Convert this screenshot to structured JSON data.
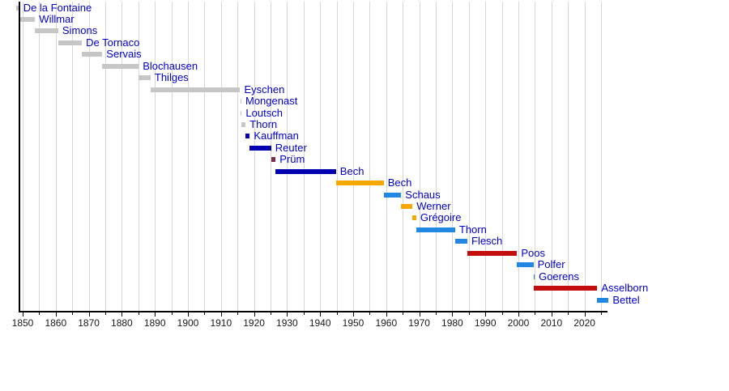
{
  "chart_data": {
    "type": "timeline",
    "description": "Gantt-style timeline of ministers, terms shown as colored bars from 1848 to present",
    "x_axis": {
      "start_year": 1847.5,
      "end_year": 2027.5,
      "gridline_start": 1850,
      "gridline_end": 2025,
      "minor_increment": 5,
      "major_increment": 10,
      "decade_labels": [
        "1850",
        "1860",
        "1870",
        "1880",
        "1890",
        "1900",
        "1910",
        "1920",
        "1930",
        "1940",
        "1950",
        "1960",
        "1970",
        "1980",
        "1990",
        "2000",
        "2010",
        "2020"
      ]
    },
    "rows": [
      {
        "label": "De la Fontaine",
        "start": 1848.0,
        "end": 1848.95,
        "color": "silver"
      },
      {
        "label": "Willmar",
        "start": 1848.95,
        "end": 1853.75,
        "color": "silver"
      },
      {
        "label": "Simons",
        "start": 1853.75,
        "end": 1860.75,
        "color": "silver"
      },
      {
        "label": "De Tornaco",
        "start": 1860.75,
        "end": 1867.92,
        "color": "silver"
      },
      {
        "label": "Servais",
        "start": 1867.92,
        "end": 1874.1,
        "color": "silver"
      },
      {
        "label": "Blochausen",
        "start": 1874.1,
        "end": 1885.1,
        "color": "silver"
      },
      {
        "label": "Thilges",
        "start": 1885.1,
        "end": 1888.7,
        "color": "silver"
      },
      {
        "label": "Eyschen",
        "start": 1888.7,
        "end": 1915.8,
        "color": "silver"
      },
      {
        "label": "Mongenast",
        "start": 1915.8,
        "end": 1915.9,
        "color": "silver"
      },
      {
        "label": "Loutsch",
        "start": 1915.9,
        "end": 1916.12,
        "color": "silver"
      },
      {
        "label": "Thorn",
        "start": 1916.12,
        "end": 1917.45,
        "color": "silver"
      },
      {
        "label": "Kauffman",
        "start": 1917.45,
        "end": 1918.73,
        "color": "navy"
      },
      {
        "label": "Reuter",
        "start": 1918.73,
        "end": 1925.2,
        "color": "navy"
      },
      {
        "label": "Prüm",
        "start": 1925.2,
        "end": 1926.54,
        "color": "purple"
      },
      {
        "label": "Bech",
        "start": 1926.54,
        "end": 1944.8,
        "color": "navy"
      },
      {
        "label": "Bech",
        "start": 1944.8,
        "end": 1959.25,
        "color": "orange"
      },
      {
        "label": "Schaus",
        "start": 1959.25,
        "end": 1964.54,
        "color": "blue"
      },
      {
        "label": "Werner",
        "start": 1964.54,
        "end": 1967.95,
        "color": "orange"
      },
      {
        "label": "Grégoire",
        "start": 1967.95,
        "end": 1969.1,
        "color": "orange"
      },
      {
        "label": "Thorn",
        "start": 1969.1,
        "end": 1980.87,
        "color": "blue"
      },
      {
        "label": "Flesch",
        "start": 1980.87,
        "end": 1984.55,
        "color": "blue"
      },
      {
        "label": "Poos",
        "start": 1984.55,
        "end": 1999.6,
        "color": "red"
      },
      {
        "label": "Polfer",
        "start": 1999.6,
        "end": 2004.56,
        "color": "blue"
      },
      {
        "label": "Goerens",
        "start": 2004.56,
        "end": 2004.66,
        "color": "blue"
      },
      {
        "label": "Asselborn",
        "start": 2004.6,
        "end": 2023.87,
        "color": "red"
      },
      {
        "label": "Bettel",
        "start": 2023.87,
        "end": 2027.3,
        "color": "blue"
      }
    ],
    "colors": {
      "silver": "#c6c6c6",
      "navy": "#0000b0",
      "orange": "#f6a800",
      "blue": "#2287e2",
      "red": "#c40d0d",
      "purple": "#7b2d4e",
      "label_text": "#0000cc",
      "axis_text": "#1a1a1a",
      "gridline": "#d6d6d6",
      "axis_line": "#000000"
    },
    "legend": "none",
    "grid": "vertical gridlines every 5 years"
  }
}
